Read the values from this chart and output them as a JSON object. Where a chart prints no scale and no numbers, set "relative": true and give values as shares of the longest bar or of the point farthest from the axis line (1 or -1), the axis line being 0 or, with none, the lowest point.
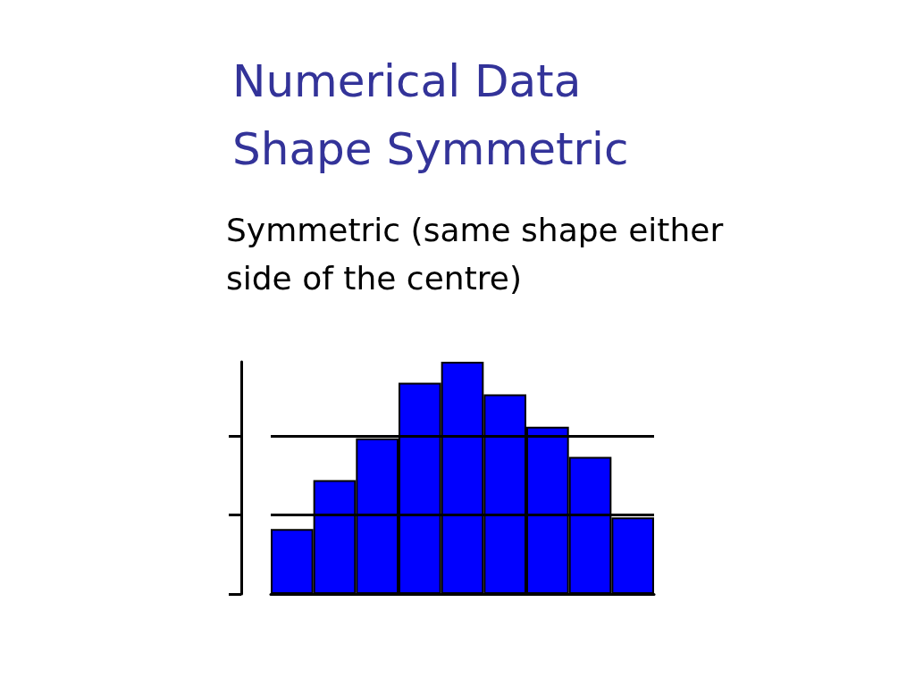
{
  "chart_data": {
    "type": "bar",
    "title": "Numerical Data\nShape Symmetric",
    "subtitle": "Symmetric (same shape either\nside of the centre)",
    "categories": [
      null,
      null,
      null,
      null,
      null,
      null,
      null,
      null,
      null
    ],
    "values": [
      0.28,
      0.49,
      0.67,
      0.91,
      1,
      0.86,
      0.72,
      0.59,
      0.33
    ],
    "color": "#0000ff",
    "relative": true,
    "ref_lines": [
      {
        "axis": "y",
        "value": 0.34,
        "color": "#000000"
      },
      {
        "axis": "y",
        "value": 0.68,
        "color": "#000000"
      }
    ]
  }
}
